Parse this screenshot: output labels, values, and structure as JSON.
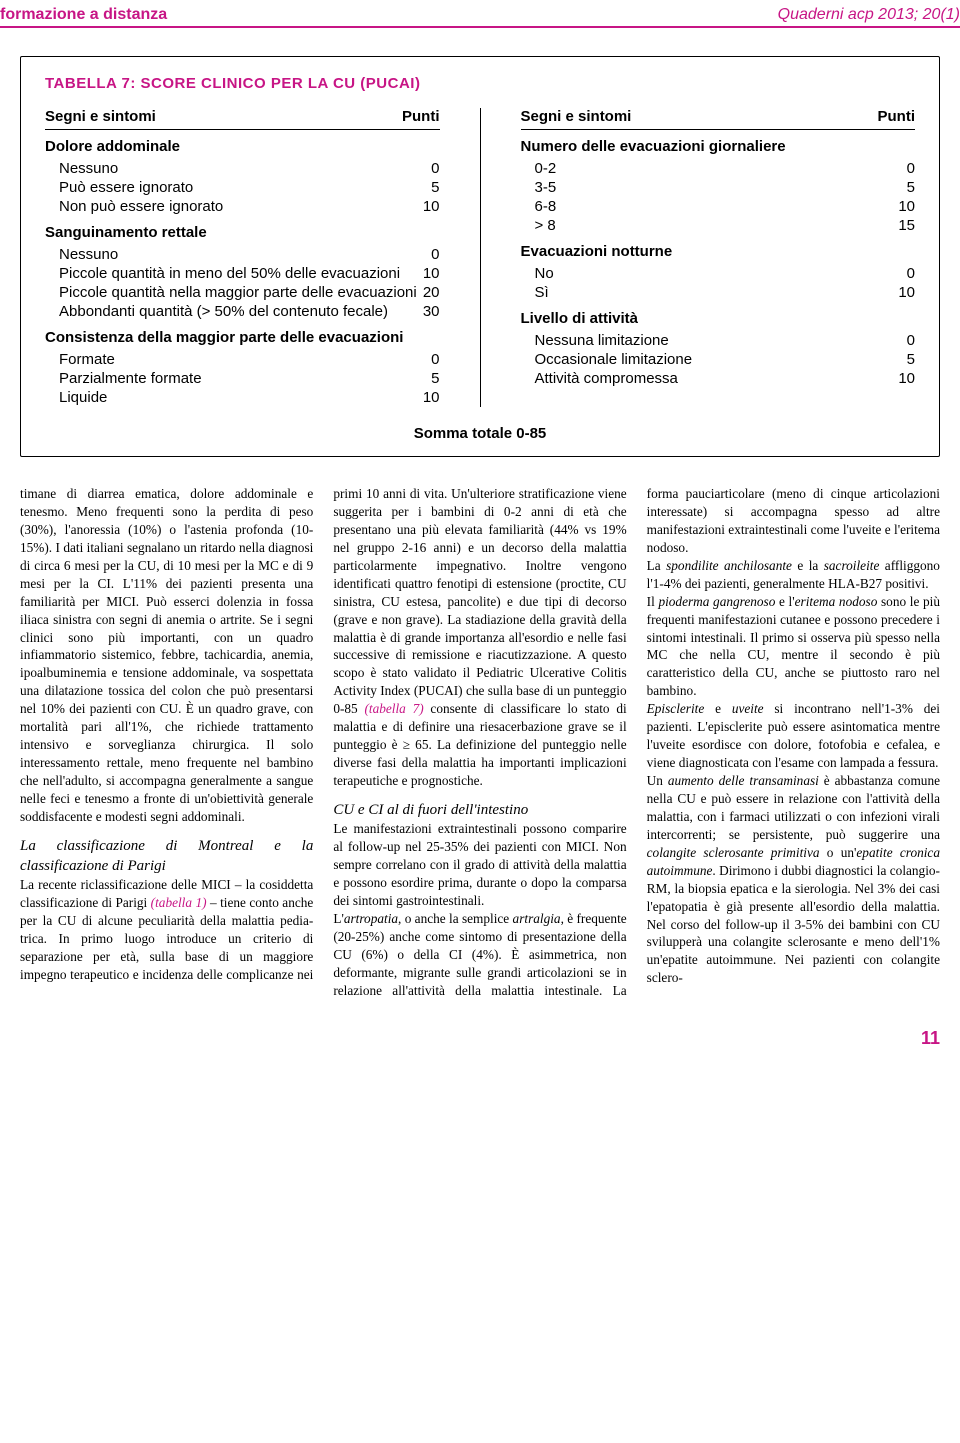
{
  "header": {
    "section": "formazione a distanza",
    "journal": "Quaderni acp 2013; 20(1)"
  },
  "table": {
    "title": "Tabella 7: score clinico per la CU (PUCAI)",
    "col_head_left": "Segni e sintomi",
    "col_head_right": "Punti",
    "left": [
      {
        "section": "Dolore addominale"
      },
      {
        "label": "Nessuno",
        "pts": "0"
      },
      {
        "label": "Può essere ignorato",
        "pts": "5"
      },
      {
        "label": "Non può essere ignorato",
        "pts": "10"
      },
      {
        "section": "Sanguinamento rettale"
      },
      {
        "label": "Nessuno",
        "pts": "0"
      },
      {
        "label": "Piccole quantità in meno del 50% delle evacuazioni",
        "pts": "10"
      },
      {
        "label": "Piccole quantità nella maggior parte delle evacuazioni",
        "pts": "20"
      },
      {
        "label": "Abbondanti quantità (> 50% del contenuto fecale)",
        "pts": "30"
      },
      {
        "section": "Consistenza della maggior parte delle evacuazioni"
      },
      {
        "label": "Formate",
        "pts": "0"
      },
      {
        "label": "Parzialmente formate",
        "pts": "5"
      },
      {
        "label": "Liquide",
        "pts": "10"
      }
    ],
    "right": [
      {
        "section": "Numero delle evacuazioni giornaliere"
      },
      {
        "label": "0-2",
        "pts": "0"
      },
      {
        "label": "3-5",
        "pts": "5"
      },
      {
        "label": "6-8",
        "pts": "10"
      },
      {
        "label": "> 8",
        "pts": "15"
      },
      {
        "section": "Evacuazioni notturne"
      },
      {
        "label": "No",
        "pts": "0"
      },
      {
        "label": "Sì",
        "pts": "10"
      },
      {
        "section": "Livello di attività"
      },
      {
        "label": "Nessuna limitazione",
        "pts": "0"
      },
      {
        "label": "Occasionale limitazione",
        "pts": "5"
      },
      {
        "label": "Attività compromessa",
        "pts": "10"
      }
    ],
    "sum": "Somma totale 0-85"
  },
  "article": {
    "p1a": "timane di diarrea ematica, dolore addo­minale e tenesmo. Meno frequenti sono la perdita di peso (30%), l'anoressia (10%) o l'astenia profonda (10-15%). I dati italiani segnalano un ritardo nella diagnosi di circa 6 mesi per la CU, di 10 mesi per la MC e di 9 mesi per la CI. L'11% dei pazienti presenta una familia­rità per MICI. Può esserci dolenzia in fossa iliaca sinistra con segni di anemia o artrite. Se i segni clinici sono più impor­tanti, con un quadro infiammatorio siste­mico, febbre, tachicardia, anemia, ipoal­buminemia e tensione addominale, va sospettata una dilatazione tossica del colon che può presentarsi nel 10% dei pazienti con CU. È un quadro grave, con mortalità pari all'1%, che richiede tratta­mento intensivo e sorveglianza chirurgi­ca. Il solo interessamento rettale, meno frequente nel bambino che nell'adulto, si accompagna generalmente a sangue nelle feci e tenesmo a fronte di un'obiet­tività generale soddisfacente e modesti segni addominali.",
    "h1": "La classificazione di Montreal e la classificazione di Parigi",
    "p1b_pre": "La recente riclassificazione delle MICI – la cosiddetta classificazione di Parigi ",
    "p1b_ref": "(tabella 1)",
    "p1b_post": " – tiene conto anche per la CU di alcune peculiarità della malattia pedia­trica. In primo luogo introduce un crite­rio di separazione per età, sulla base di un maggiore impegno terapeutico e inci­denza delle complicanze nei primi 10 anni di vita. Un'ulteriore stratificazione ",
    "p2a_pre": "viene suggerita per i bambini di 0-2 anni di età che presentano una più elevata familiarità (44% vs 19% nel gruppo 2-16 anni) e un decorso della malattia partico­larmente impegnativo. Inoltre vengono identificati quattro fenotipi di estensione (proctite, CU sinistra, CU estesa, panco­lite) e due tipi di decorso (grave e non grave).\nLa stadiazione della gravità della malat­tia è di grande importanza all'esordio e nelle fasi successive di remissione e ria­cutizzazione. A questo scopo è stato vali­dato il Pediatric Ulcerative Colitis Activity Index (PUCAI) che sulla base di un punteggio 0-85 ",
    "p2a_ref": "(tabella 7)",
    "p2a_post": " consente di classificare lo stato di malattia e di defi­nire una riesacerbazione grave se il pun­teggio è ≥ 65.\nLa definizione del punteggio nelle diver­se fasi della malattia ha importanti impli­cazioni terapeutiche e prognostiche.",
    "h2": "CU e CI al di fuori dell'intestino",
    "p2b": "Le manifestazioni extraintestinali posso­no comparire al follow-up nel 25-35% dei pazienti con MICI. Non sempre cor­relano con il grado di attività della malat­tia e possono esordire prima, durante o dopo la comparsa dei sintomi gastrointe­stinali.",
    "p2c_pre": "L'",
    "p2c_em1": "artropatia",
    "p2c_mid": ", o anche la semplice ",
    "p2c_em2": "artral­gia",
    "p2c_post": ", è frequente (20-25%) anche come sintomo di presentazione della CU (6%) o della CI (4%). È asimmetrica, non deformante, migrante sulle grandi artico­lazioni se in relazione all'attività della ",
    "p3a": "malattia intestinale. La forma pauciarti­colare (meno di cinque articolazioni inte­ressate) si accompagna spesso ad altre manifestazioni extraintestinali come l'u­veite e l'eritema nodoso.",
    "p3b_pre": "La ",
    "p3b_em1": "spondilite anchilosante",
    "p3b_mid1": " e la ",
    "p3b_em2": "sacroilei­te",
    "p3b_post": " affliggono l'1-4% dei pazienti, gene­ralmente HLA-B27 positivi.",
    "p3c_pre": "Il ",
    "p3c_em1": "pioderma gangrenoso",
    "p3c_mid": " e l'",
    "p3c_em2": "eritema no­doso",
    "p3c_post": " sono le più frequenti manifestazio­ni cutanee e possono precedere i sintomi intestinali. Il primo si osserva più spesso nella MC che nella CU, mentre il secon­do è più caratteristico della CU, anche se piuttosto raro nel bambino.",
    "p3d_em1": "Episclerite",
    "p3d_mid": " e ",
    "p3d_em2": "uveite",
    "p3d_post": " si incontrano nel­l'1-3% dei pazienti. L'episclerite può essere asintomatica mentre l'uveite esor­disce con dolore, fotofobia e cefalea, e viene diagnosticata con l'esame con lam­pada a fessura.",
    "p3e_pre": "Un ",
    "p3e_em1": "aumento delle transaminasi",
    "p3e_mid": " è abba­stanza comune nella CU e può essere in relazione con l'attività della malattia, con i farmaci utilizzati o con infezioni virali intercorrenti; se persistente, può suggerire una ",
    "p3e_em2": "colangite sclerosante pri­mitiva",
    "p3e_mid2": " o un'",
    "p3e_em3": "epatite cronica autoimmune",
    "p3e_post": ". Dirimono i dubbi diagnostici la colan­gio-RM, la biopsia epatica e la sierolo­gia. Nel 3% dei casi l'epatopatia è già presente all'esordio della malattia. Nel corso del follow-up il 3-5% dei bambini con CU svilupperà una colangite sclero­sante e meno dell'1% un'epatite autoim­mune. Nei pazienti con colangite sclero-"
  },
  "page": "11",
  "colors": {
    "accent": "#c71585"
  }
}
